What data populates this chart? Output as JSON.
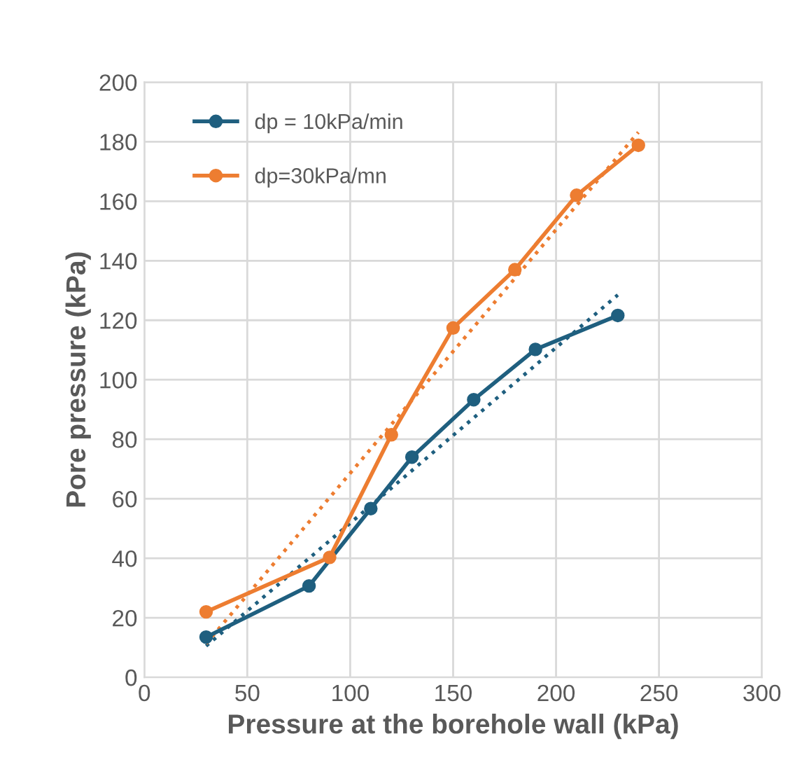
{
  "chart_data": {
    "type": "line",
    "xlabel": "Pressure at the borehole wall (kPa)",
    "ylabel": "Pore pressure (kPa)",
    "series": [
      {
        "name": "dp = 10kPa/min",
        "color": "#1f5f7f",
        "x": [
          30,
          80,
          110,
          130,
          160,
          190,
          230
        ],
        "values": [
          13.5,
          30.7,
          56.7,
          74,
          93.3,
          110.2,
          121.6
        ],
        "marker": "circle",
        "line_style": "solid"
      },
      {
        "name": "dp=30kPa/mn",
        "color": "#ed7d31",
        "x": [
          30,
          90,
          120,
          150,
          180,
          210,
          240
        ],
        "values": [
          22,
          40.3,
          81.5,
          117.4,
          137,
          162,
          178.8
        ],
        "marker": "circle",
        "line_style": "solid"
      },
      {
        "color": "#1f5f7f",
        "x": [
          30,
          230
        ],
        "values": [
          10.5,
          128.5
        ],
        "marker": "none",
        "line_style": "dotted"
      },
      {
        "color": "#ed7d31",
        "x": [
          30,
          240
        ],
        "values": [
          11.3,
          183.2
        ],
        "marker": "none",
        "line_style": "dotted"
      }
    ],
    "xlim": [
      0,
      300
    ],
    "xticks": [
      0,
      50,
      100,
      150,
      200,
      250,
      300
    ],
    "ylim": [
      0,
      200
    ],
    "yticks": [
      0,
      20,
      40,
      60,
      80,
      100,
      120,
      140,
      160,
      180,
      200
    ],
    "grid": true,
    "legend": "top left"
  }
}
